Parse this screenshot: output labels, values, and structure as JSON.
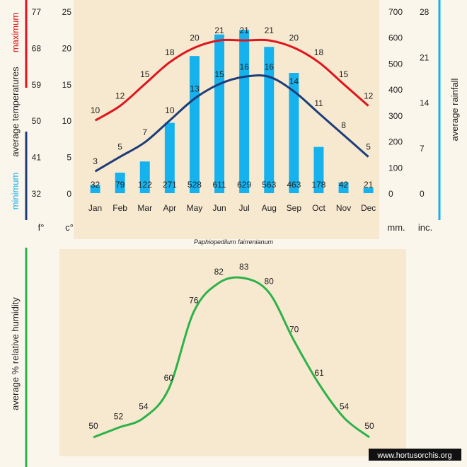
{
  "colors": {
    "background": "#fbf6ec",
    "panel": "#f7e9cf",
    "max_line": "#e0141c",
    "min_line": "#1d3d7a",
    "rain_bar": "#16b2ee",
    "humidity_line": "#2cb24a",
    "rain_axis_bar": "#16b2ee"
  },
  "labels": {
    "subtitle": "Paphiopedilum fairrenianum",
    "unit_f": "f°",
    "unit_c": "c°",
    "unit_mm": "mm.",
    "unit_inc": "inc.",
    "left_axis_maximum": "maximum",
    "left_axis_average_temperatures": "average temperatures",
    "left_axis_minimum": "minimum",
    "right_axis_rainfall": "average rainfall",
    "humidity_axis": "average %  relative humidity",
    "website": "www.hortusorchis.org"
  },
  "chart_data": [
    {
      "type": "bar",
      "title": "",
      "categories": [
        "Jan",
        "Feb",
        "Mar",
        "Apr",
        "May",
        "Jun",
        "Jul",
        "Aug",
        "Sep",
        "Oct",
        "Nov",
        "Dec"
      ],
      "series": [
        {
          "name": "maximum",
          "kind": "line",
          "axis": "celsius",
          "values": [
            10,
            12,
            15,
            18,
            20,
            21,
            21,
            21,
            20,
            18,
            15,
            12
          ]
        },
        {
          "name": "minimum",
          "kind": "line",
          "axis": "celsius",
          "values": [
            3,
            5,
            7,
            10,
            13,
            15,
            16,
            16,
            14,
            11,
            8,
            5
          ]
        },
        {
          "name": "average rainfall",
          "kind": "bar",
          "axis": "mm",
          "values": [
            32,
            79,
            122,
            271,
            528,
            611,
            629,
            563,
            463,
            178,
            42,
            21
          ]
        }
      ],
      "axes": {
        "fahrenheit": {
          "ticks": [
            32,
            41,
            50,
            59,
            68,
            77
          ],
          "range": [
            32,
            77
          ]
        },
        "celsius": {
          "ticks": [
            0,
            5,
            10,
            15,
            20,
            25
          ],
          "range": [
            0,
            25
          ]
        },
        "mm": {
          "ticks": [
            0,
            100,
            200,
            300,
            400,
            500,
            600,
            700
          ],
          "range": [
            0,
            700
          ]
        },
        "inches": {
          "ticks": [
            0,
            7,
            14,
            21,
            28
          ],
          "range": [
            0,
            28
          ]
        }
      },
      "grid": false,
      "legend": "none"
    },
    {
      "type": "line",
      "title": "",
      "categories": [
        "Jan",
        "Feb",
        "Mar",
        "Apr",
        "May",
        "Jun",
        "Jul",
        "Aug",
        "Sep",
        "Oct",
        "Nov",
        "Dec"
      ],
      "series": [
        {
          "name": "",
          "values": [
            50,
            52,
            54,
            60,
            76,
            82,
            83,
            80,
            70,
            61,
            54,
            50
          ]
        }
      ],
      "ylim": [
        45,
        90
      ],
      "grid": false,
      "legend": "none"
    }
  ]
}
